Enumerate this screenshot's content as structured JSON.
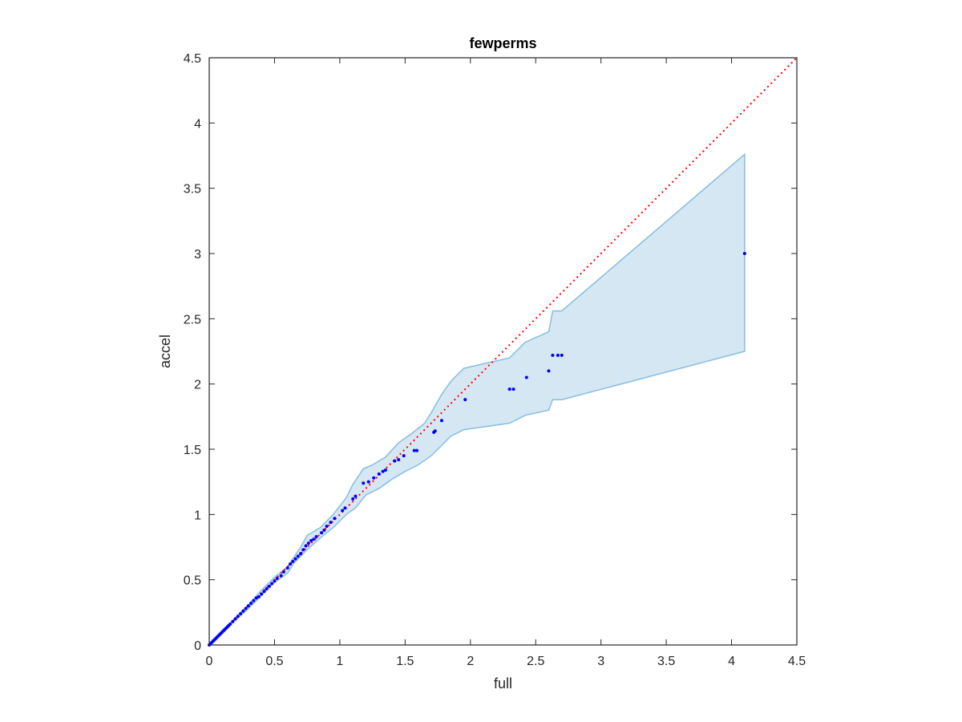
{
  "chart_data": {
    "type": "scatter",
    "title": "fewperms",
    "xlabel": "full",
    "ylabel": "accel",
    "xlim": [
      0,
      4.5
    ],
    "ylim": [
      0,
      4.5
    ],
    "xticks": [
      "0",
      "0.5",
      "1",
      "1.5",
      "2",
      "2.5",
      "3",
      "3.5",
      "4",
      "4.5"
    ],
    "yticks": [
      "0",
      "0.5",
      "1",
      "1.5",
      "2",
      "2.5",
      "3",
      "3.5",
      "4",
      "4.5"
    ],
    "grid": false,
    "colors": {
      "points": "#0000ff",
      "reference_line": "#ff0000",
      "band_fill": "#d6e7f4",
      "band_edge": "#86bde0",
      "axes": "#262626"
    },
    "reference_line": {
      "style": "dotted",
      "x": [
        0,
        4.5
      ],
      "y": [
        0,
        4.5
      ]
    },
    "band": {
      "upper": [
        [
          0,
          0
        ],
        [
          0.1,
          0.1
        ],
        [
          0.2,
          0.21
        ],
        [
          0.3,
          0.31
        ],
        [
          0.4,
          0.42
        ],
        [
          0.5,
          0.52
        ],
        [
          0.6,
          0.6
        ],
        [
          0.7,
          0.75
        ],
        [
          0.75,
          0.84
        ],
        [
          0.85,
          0.9
        ],
        [
          0.95,
          1.0
        ],
        [
          1.05,
          1.13
        ],
        [
          1.1,
          1.23
        ],
        [
          1.18,
          1.35
        ],
        [
          1.25,
          1.38
        ],
        [
          1.35,
          1.44
        ],
        [
          1.45,
          1.55
        ],
        [
          1.55,
          1.62
        ],
        [
          1.65,
          1.7
        ],
        [
          1.7,
          1.78
        ],
        [
          1.78,
          1.92
        ],
        [
          1.85,
          2.02
        ],
        [
          1.95,
          2.12
        ],
        [
          2.3,
          2.2
        ],
        [
          2.42,
          2.32
        ],
        [
          2.6,
          2.4
        ],
        [
          2.63,
          2.56
        ],
        [
          2.7,
          2.56
        ],
        [
          4.1,
          3.76
        ]
      ],
      "lower": [
        [
          4.1,
          2.25
        ],
        [
          2.7,
          1.88
        ],
        [
          2.63,
          1.88
        ],
        [
          2.6,
          1.8
        ],
        [
          2.42,
          1.76
        ],
        [
          2.3,
          1.7
        ],
        [
          1.95,
          1.65
        ],
        [
          1.85,
          1.6
        ],
        [
          1.75,
          1.5
        ],
        [
          1.7,
          1.45
        ],
        [
          1.6,
          1.38
        ],
        [
          1.5,
          1.33
        ],
        [
          1.4,
          1.27
        ],
        [
          1.3,
          1.2
        ],
        [
          1.2,
          1.15
        ],
        [
          1.12,
          1.05
        ],
        [
          1.05,
          1.0
        ],
        [
          0.95,
          0.9
        ],
        [
          0.85,
          0.82
        ],
        [
          0.75,
          0.73
        ],
        [
          0.65,
          0.63
        ],
        [
          0.6,
          0.55
        ],
        [
          0.5,
          0.48
        ],
        [
          0.4,
          0.38
        ],
        [
          0.3,
          0.28
        ],
        [
          0.2,
          0.19
        ],
        [
          0.1,
          0.09
        ],
        [
          0,
          0
        ]
      ]
    },
    "points": {
      "x": [
        0.0,
        0.01,
        0.02,
        0.03,
        0.04,
        0.05,
        0.06,
        0.07,
        0.08,
        0.09,
        0.1,
        0.11,
        0.12,
        0.13,
        0.14,
        0.15,
        0.16,
        0.18,
        0.2,
        0.22,
        0.24,
        0.26,
        0.28,
        0.3,
        0.32,
        0.34,
        0.36,
        0.38,
        0.4,
        0.42,
        0.44,
        0.46,
        0.48,
        0.5,
        0.52,
        0.55,
        0.57,
        0.6,
        0.62,
        0.64,
        0.66,
        0.68,
        0.7,
        0.72,
        0.74,
        0.76,
        0.78,
        0.8,
        0.82,
        0.86,
        0.88,
        0.9,
        0.93,
        0.96,
        1.02,
        1.04,
        1.1,
        1.12,
        1.18,
        1.22,
        1.26,
        1.3,
        1.33,
        1.35,
        1.42,
        1.45,
        1.49,
        1.57,
        1.59,
        1.72,
        1.73,
        1.78,
        1.96,
        2.3,
        2.33,
        2.43,
        2.6,
        2.63,
        2.67,
        2.7,
        4.1
      ],
      "y": [
        0.0,
        0.01,
        0.02,
        0.03,
        0.04,
        0.05,
        0.06,
        0.07,
        0.08,
        0.09,
        0.1,
        0.11,
        0.12,
        0.13,
        0.14,
        0.15,
        0.16,
        0.18,
        0.2,
        0.22,
        0.24,
        0.26,
        0.28,
        0.3,
        0.32,
        0.34,
        0.36,
        0.37,
        0.39,
        0.41,
        0.43,
        0.45,
        0.47,
        0.49,
        0.51,
        0.53,
        0.56,
        0.59,
        0.62,
        0.64,
        0.66,
        0.68,
        0.7,
        0.73,
        0.76,
        0.78,
        0.8,
        0.81,
        0.83,
        0.86,
        0.88,
        0.91,
        0.94,
        0.97,
        1.03,
        1.05,
        1.12,
        1.14,
        1.24,
        1.25,
        1.28,
        1.31,
        1.33,
        1.34,
        1.41,
        1.42,
        1.45,
        1.49,
        1.49,
        1.63,
        1.64,
        1.72,
        1.88,
        1.96,
        1.96,
        2.05,
        2.1,
        2.22,
        2.22,
        2.22,
        3.0
      ]
    }
  }
}
